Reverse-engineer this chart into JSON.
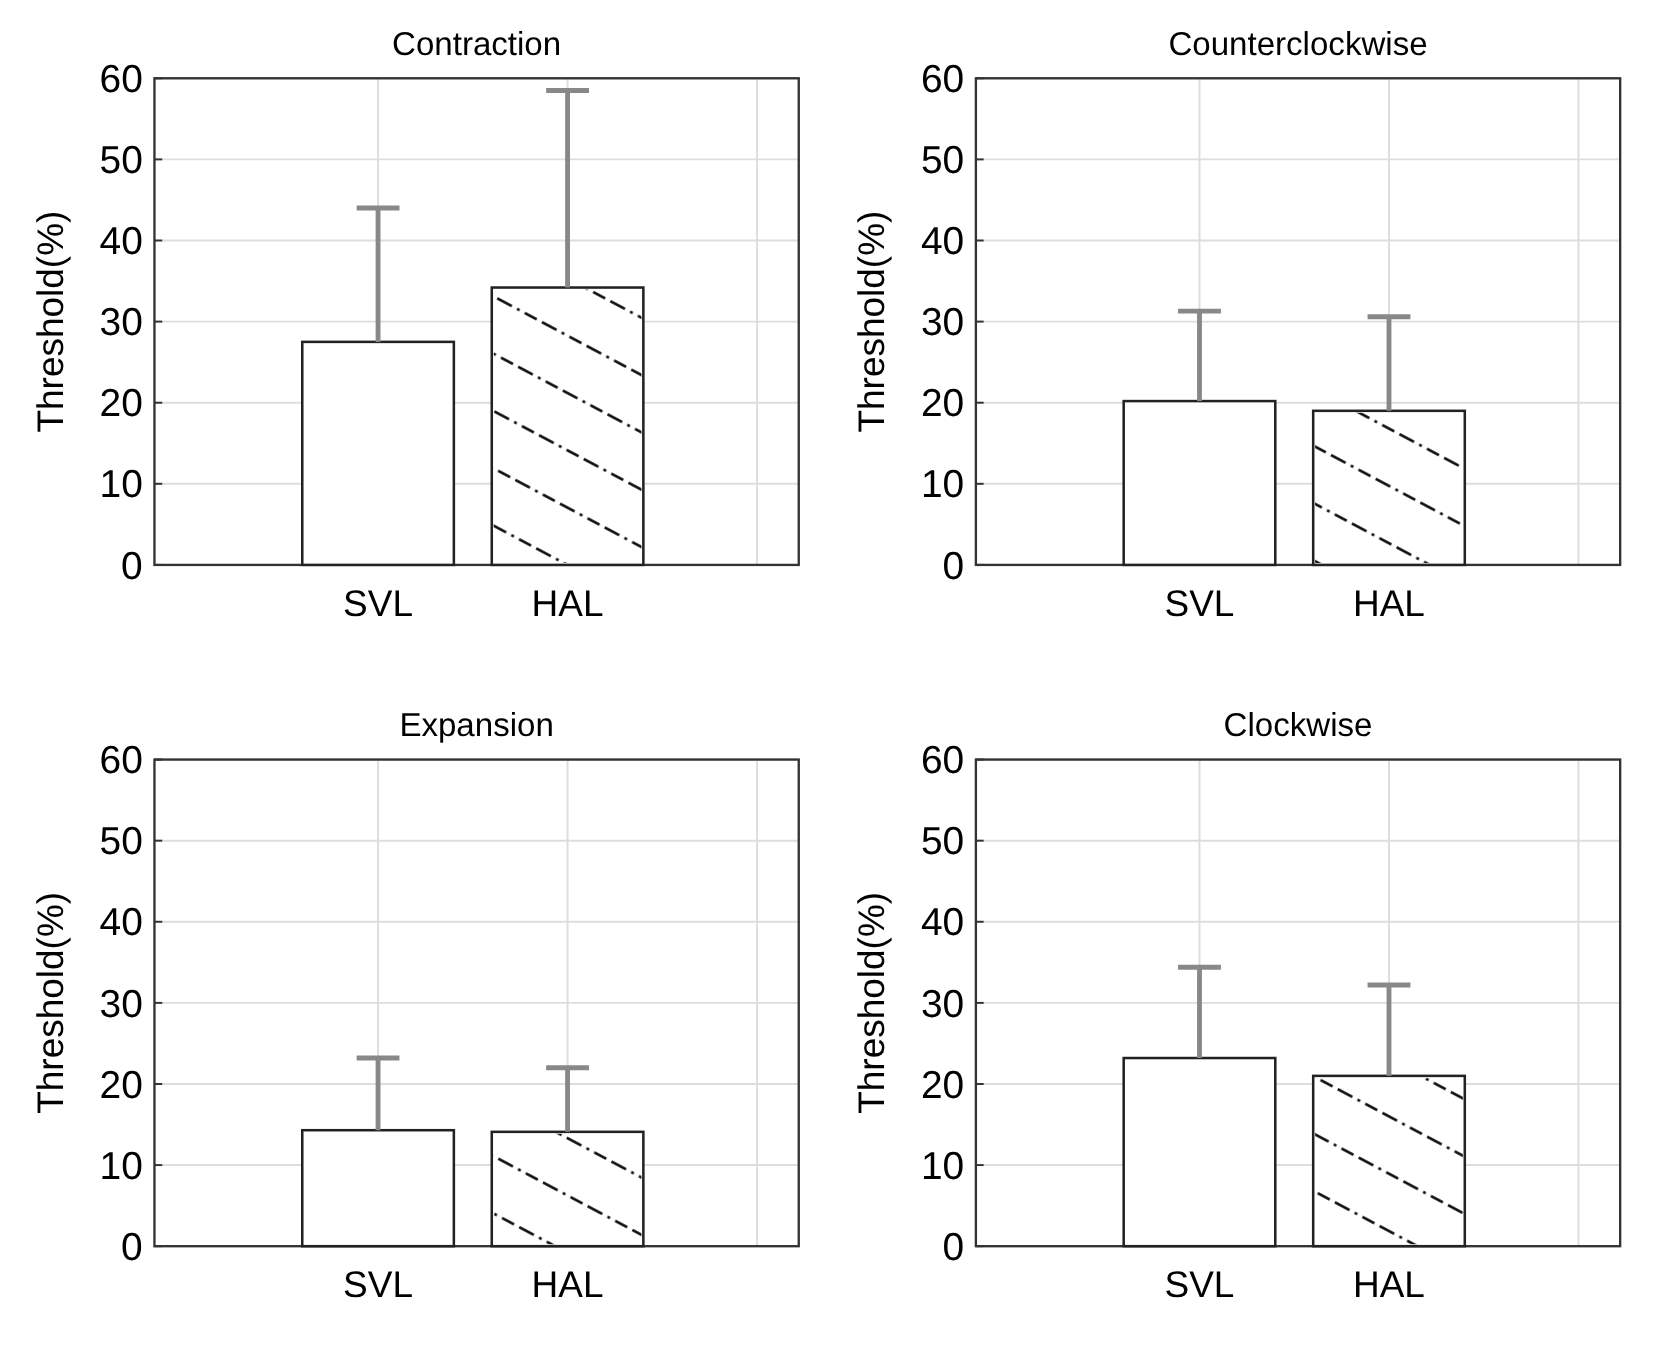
{
  "chart_data": [
    {
      "type": "bar",
      "title": "Contraction",
      "ylabel": "Threshold(%)",
      "categories": [
        "SVL",
        "HAL",
        null
      ],
      "color": "#ffffff",
      "values": [
        27.5,
        34.2,
        null
      ],
      "errors": [
        [
          27.5,
          44
        ],
        [
          34.2,
          58.5
        ],
        null
      ],
      "ylim": [
        0,
        60
      ],
      "yticks": [
        0,
        10,
        20,
        30,
        40,
        50,
        60
      ],
      "grid": true
    },
    {
      "type": "bar",
      "title": "Counterclockwise",
      "ylabel": "Threshold(%)",
      "categories": [
        "SVL",
        "HAL",
        null
      ],
      "color": "#ffffff",
      "values": [
        20.2,
        19,
        null
      ],
      "errors": [
        [
          20.2,
          31.3
        ],
        [
          19,
          30.6
        ],
        null
      ],
      "ylim": [
        0,
        60
      ],
      "yticks": [
        0,
        10,
        20,
        30,
        40,
        50,
        60
      ],
      "grid": true
    },
    {
      "type": "bar",
      "title": "Expansion",
      "ylabel": "Threshold(%)",
      "categories": [
        "SVL",
        "HAL",
        null
      ],
      "color": "#ffffff",
      "values": [
        14.3,
        14.1,
        null
      ],
      "errors": [
        [
          14.3,
          23.2
        ],
        [
          14.1,
          22
        ],
        null
      ],
      "ylim": [
        0,
        60
      ],
      "yticks": [
        0,
        10,
        20,
        30,
        40,
        50,
        60
      ],
      "grid": true
    },
    {
      "type": "bar",
      "title": "Clockwise",
      "ylabel": "Threshold(%)",
      "categories": [
        "SVL",
        "HAL",
        null
      ],
      "color": "#ffffff",
      "values": [
        23.2,
        21,
        null
      ],
      "errors": [
        [
          23.2,
          34.4
        ],
        [
          21,
          32.2
        ],
        null
      ],
      "ylim": [
        0,
        60
      ],
      "yticks": [
        0,
        10,
        20,
        30,
        40,
        50,
        60
      ],
      "grid": true
    }
  ]
}
